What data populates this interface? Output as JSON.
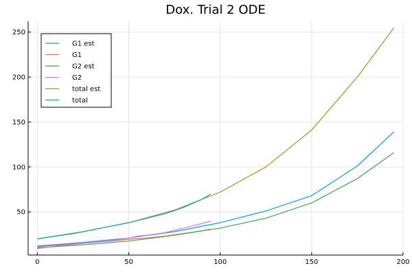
{
  "chart_data": {
    "type": "line",
    "title": "Dox. Trial 2 ODE",
    "xlabel": "",
    "ylabel": "",
    "xlim": [
      -5,
      200
    ],
    "ylim": [
      2,
      262
    ],
    "xticks": [
      0,
      50,
      100,
      150,
      200
    ],
    "yticks": [
      50,
      100,
      150,
      200,
      250
    ],
    "grid": true,
    "legend_position": "top-left",
    "series": [
      {
        "name": "G1 est",
        "color": "#009AFA",
        "x": [
          0,
          25,
          50,
          75,
          100,
          125,
          150,
          175,
          195
        ],
        "y": [
          12,
          16,
          21,
          28,
          38,
          51,
          68,
          101,
          139
        ]
      },
      {
        "name": "G1",
        "color": "#E36F47",
        "x": [
          0,
          10,
          20,
          30,
          40,
          50,
          60,
          70,
          80,
          90,
          95
        ],
        "y": [
          11,
          13,
          14.5,
          16,
          17.5,
          19.5,
          21,
          23,
          26,
          29,
          31
        ]
      },
      {
        "name": "G2 est",
        "color": "#3EA44E",
        "x": [
          0,
          25,
          50,
          75,
          100,
          125,
          150,
          175,
          195
        ],
        "y": [
          10,
          13.5,
          17.5,
          24,
          32,
          43,
          60,
          87,
          116
        ]
      },
      {
        "name": "G2",
        "color": "#DA6FF1",
        "x": [
          0,
          10,
          20,
          30,
          40,
          50,
          55,
          60,
          70,
          80,
          90,
          95
        ],
        "y": [
          9,
          12,
          14,
          16,
          18,
          21,
          23,
          24,
          27,
          32,
          37,
          40
        ]
      },
      {
        "name": "total est",
        "color": "#AC8D18",
        "x": [
          0,
          25,
          50,
          75,
          100,
          125,
          150,
          175,
          195
        ],
        "y": [
          20,
          28,
          38,
          52,
          72,
          100,
          141,
          200,
          255
        ]
      },
      {
        "name": "total",
        "color": "#00A9AD",
        "x": [
          0,
          10,
          20,
          30,
          40,
          50,
          60,
          70,
          80,
          90,
          95
        ],
        "y": [
          20,
          23,
          26,
          30,
          34,
          38,
          43,
          48,
          55,
          64,
          70
        ]
      }
    ]
  }
}
